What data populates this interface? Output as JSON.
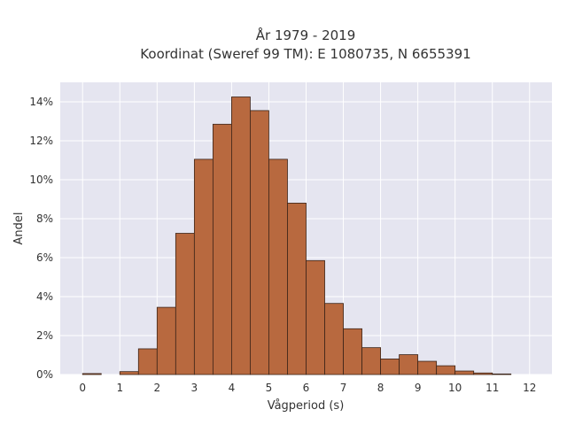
{
  "chart_data": {
    "type": "bar",
    "title_line1": "År 1979 - 2019",
    "title_line2": "Koordinat (Sweref 99 TM): E 1080735, N 6655391",
    "xlabel": "Vågperiod (s)",
    "ylabel": "Andel",
    "bin_width": 0.5,
    "bins": [
      {
        "start": 0.0,
        "value": 0.05
      },
      {
        "start": 0.5,
        "value": 0.0
      },
      {
        "start": 1.0,
        "value": 0.15
      },
      {
        "start": 1.5,
        "value": 1.32
      },
      {
        "start": 2.0,
        "value": 3.45
      },
      {
        "start": 2.5,
        "value": 7.25
      },
      {
        "start": 3.0,
        "value": 11.05
      },
      {
        "start": 3.5,
        "value": 12.85
      },
      {
        "start": 4.0,
        "value": 14.25
      },
      {
        "start": 4.5,
        "value": 13.55
      },
      {
        "start": 5.0,
        "value": 11.05
      },
      {
        "start": 5.5,
        "value": 8.8
      },
      {
        "start": 6.0,
        "value": 5.85
      },
      {
        "start": 6.5,
        "value": 3.65
      },
      {
        "start": 7.0,
        "value": 2.35
      },
      {
        "start": 7.5,
        "value": 1.38
      },
      {
        "start": 8.0,
        "value": 0.8
      },
      {
        "start": 8.5,
        "value": 1.02
      },
      {
        "start": 9.0,
        "value": 0.68
      },
      {
        "start": 9.5,
        "value": 0.45
      },
      {
        "start": 10.0,
        "value": 0.18
      },
      {
        "start": 10.5,
        "value": 0.08
      },
      {
        "start": 11.0,
        "value": 0.03
      }
    ],
    "xlim": [
      -0.6,
      12.6
    ],
    "ylim": [
      0,
      15
    ],
    "x_ticks": [
      "0",
      "1",
      "2",
      "3",
      "4",
      "5",
      "6",
      "7",
      "8",
      "9",
      "10",
      "11",
      "12"
    ],
    "y_ticks": [
      "0%",
      "2%",
      "4%",
      "6%",
      "8%",
      "10%",
      "12%",
      "14%"
    ],
    "grid": true,
    "colors": {
      "bar_fill": "#b8693f",
      "bar_stroke": "#3b2418",
      "plot_bg": "#e5e5f0",
      "grid": "#ffffff"
    }
  }
}
